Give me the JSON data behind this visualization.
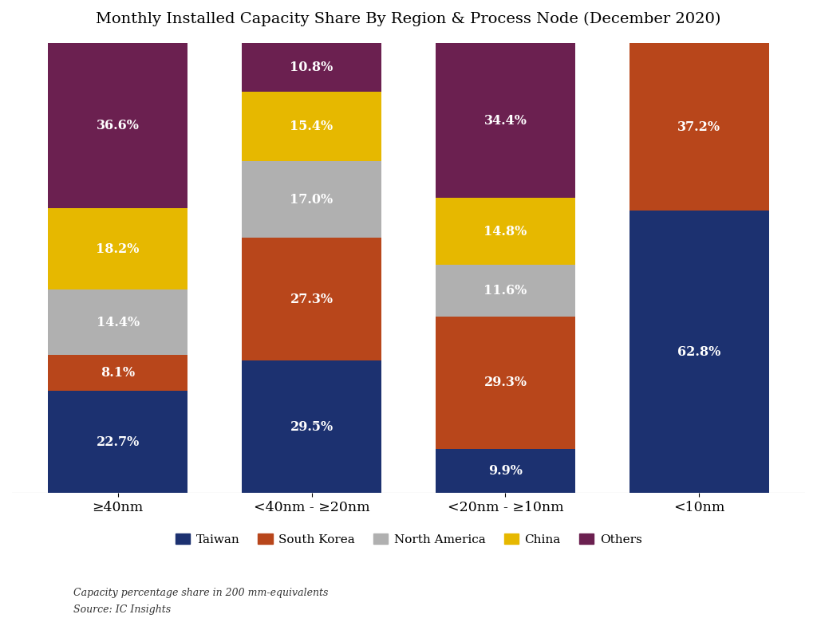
{
  "title": "Monthly Installed Capacity Share By Region & Process Node (December 2020)",
  "categories": [
    "≥40nm",
    "<40nm - ≥20nm",
    "<20nm - ≥10nm",
    "<10nm"
  ],
  "regions": [
    "Taiwan",
    "South Korea",
    "North America",
    "China",
    "Others"
  ],
  "colors": [
    "#1c3170",
    "#b8461b",
    "#b0b0b0",
    "#e6b800",
    "#6b2050"
  ],
  "values": [
    [
      22.7,
      8.1,
      14.4,
      18.2,
      36.6
    ],
    [
      29.5,
      27.3,
      17.0,
      15.4,
      10.8
    ],
    [
      9.9,
      29.3,
      11.6,
      14.8,
      34.4
    ],
    [
      62.8,
      37.2,
      0.0,
      0.0,
      0.0
    ]
  ],
  "footnote1": "Capacity percentage share in 200 mm-equivalents",
  "footnote2": "Source: IC Insights",
  "background_color": "#ffffff",
  "bar_width": 0.72,
  "title_fontsize": 14,
  "label_fontsize": 11.5,
  "legend_fontsize": 11,
  "footnote_fontsize": 9,
  "ylim": [
    0,
    100
  ]
}
